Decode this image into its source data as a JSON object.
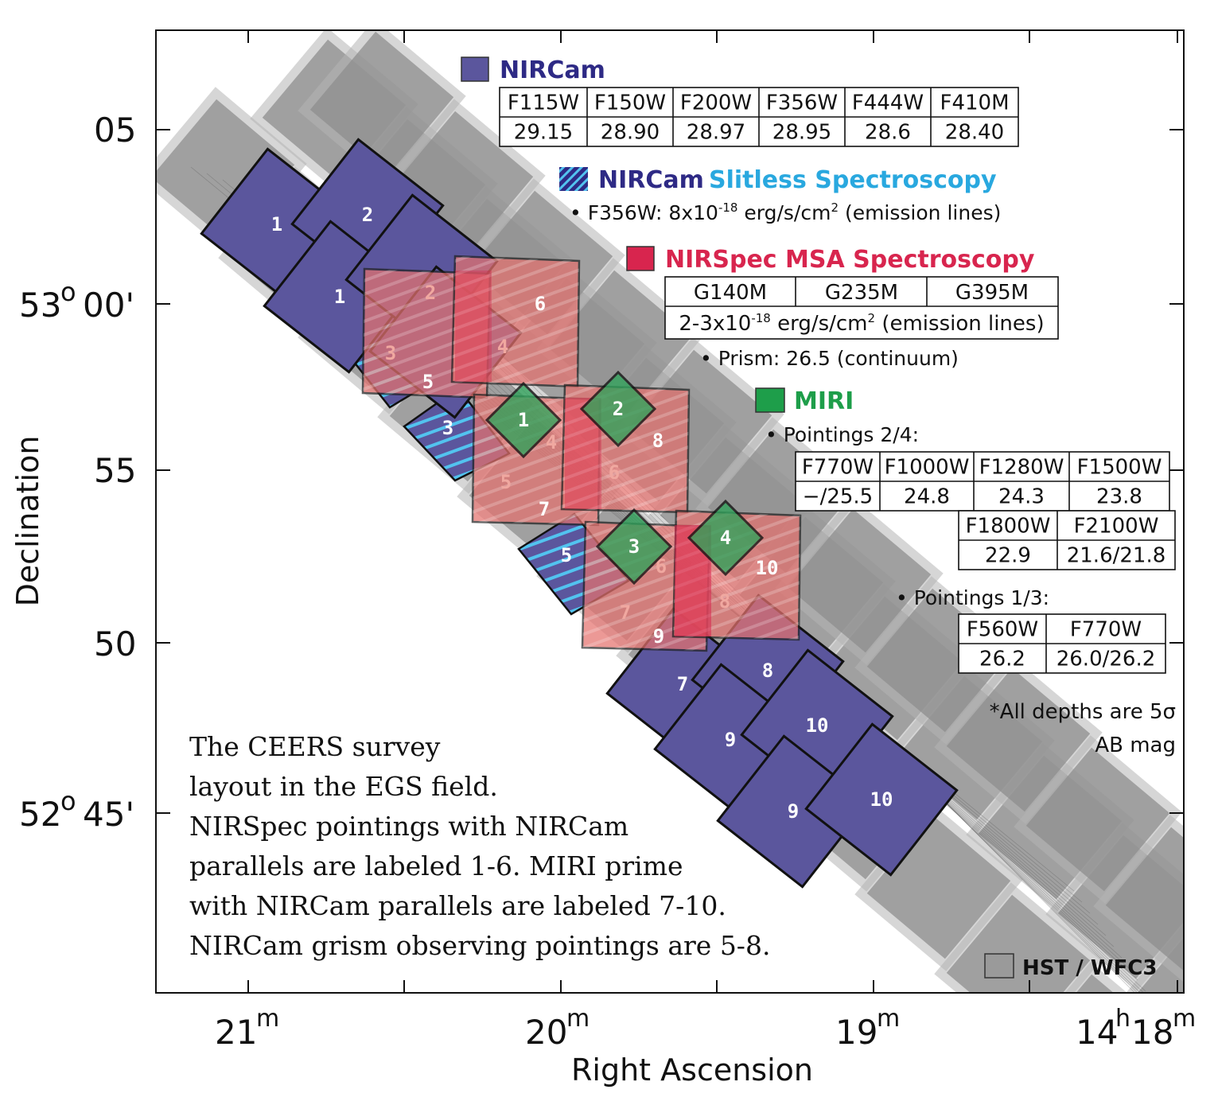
{
  "axes": {
    "xlabel": "Right Ascension",
    "ylabel": "Declination",
    "x_ticks": [
      {
        "main": "21",
        "sup": "m",
        "pre": ""
      },
      {
        "main": "20",
        "sup": "m",
        "pre": ""
      },
      {
        "main": "19",
        "sup": "m",
        "pre": ""
      },
      {
        "main": "18",
        "sup": "m",
        "pre": "14",
        "pre_sup": "h"
      }
    ],
    "y_ticks": [
      {
        "main": "05",
        "deg": "",
        "sup": ""
      },
      {
        "main": "00'",
        "deg": "53",
        "sup": "o"
      },
      {
        "main": "55",
        "deg": "",
        "sup": ""
      },
      {
        "main": "50",
        "deg": "",
        "sup": ""
      },
      {
        "main": "45'",
        "deg": "52",
        "sup": "o"
      }
    ]
  },
  "colors": {
    "nircam": "#5b569d",
    "nircam_title": "#2e2a85",
    "slitless_title": "#29a8df",
    "nirspec": "#d8254e",
    "nirspec_fill": "#e5726f",
    "miri": "#2fa25a",
    "miri_title": "#1e9e4a",
    "hst": "#9a9a9a",
    "grism_stripe": "#52c3ef"
  },
  "legend": {
    "nircam": {
      "title": "NIRCam",
      "filters": [
        "F115W",
        "F150W",
        "F200W",
        "F356W",
        "F444W",
        "F410M"
      ],
      "depths": [
        "29.15",
        "28.90",
        "28.97",
        "28.95",
        "28.6",
        "28.40"
      ]
    },
    "slitless": {
      "title_a": "NIRCam",
      "title_b": "Slitless Spectroscopy",
      "line_pre": "• F356W: 8x10",
      "line_exp": "-18",
      "line_mid": " erg/s/cm",
      "line_sq": "2",
      "line_post": " (emission lines)"
    },
    "nirspec": {
      "title": "NIRSpec MSA Spectroscopy",
      "gratings": [
        "G140M",
        "G235M",
        "G395M"
      ],
      "depth_pre": "2-3x10",
      "depth_exp": "-18",
      "depth_mid": " erg/s/cm",
      "depth_sq": "2",
      "depth_post": " (emission lines)",
      "prism": "• Prism: 26.5 (continuum)"
    },
    "miri": {
      "title": "MIRI",
      "p24_label": "• Pointings 2/4:",
      "p24_filters_a": [
        "F770W",
        "F1000W",
        "F1280W",
        "F1500W"
      ],
      "p24_depths_a": [
        "−/25.5",
        "24.8",
        "24.3",
        "23.8"
      ],
      "p24_filters_b": [
        "F1800W",
        "F2100W"
      ],
      "p24_depths_b": [
        "22.9",
        "21.6/21.8"
      ],
      "p13_label": "• Pointings 1/3:",
      "p13_filters": [
        "F560W",
        "F770W"
      ],
      "p13_depths": [
        "26.2",
        "26.0/26.2"
      ]
    },
    "note_line1": "*All depths are 5σ",
    "note_line2": "AB mag",
    "hst": "HST / WFC3"
  },
  "caption": [
    "The CEERS survey",
    "layout in the EGS field.",
    "NIRSpec pointings with NIRCam",
    "parallels are labeled 1-6.  MIRI prime",
    "with NIRCam parallels are labeled 7-10.",
    "NIRCam grism observing pointings are 5-8."
  ],
  "pointings": {
    "nircam_labels": [
      "1",
      "2",
      "1",
      "3",
      "5",
      "7",
      "8",
      "9",
      "10",
      "9",
      "10"
    ],
    "grism_labels": [
      "3",
      "5"
    ],
    "nirspec_labels": [
      "2",
      "6",
      "3",
      "4",
      "5",
      "4",
      "8",
      "5",
      "6",
      "7",
      "6",
      "10",
      "7",
      "8",
      "9"
    ],
    "miri_labels": [
      "1",
      "2",
      "3",
      "4"
    ]
  }
}
